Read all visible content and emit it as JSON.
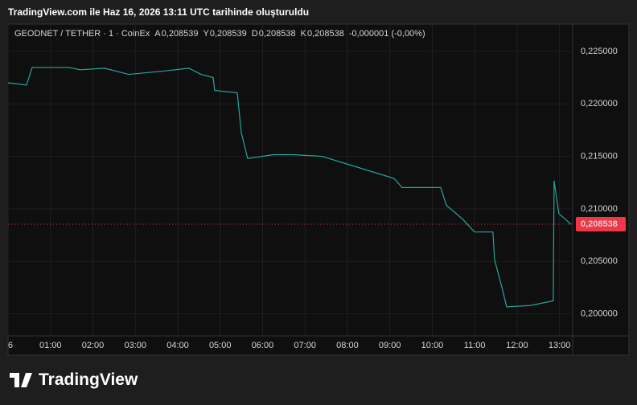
{
  "header": {
    "caption": "TradingView.com ile Haz 16, 2026 13:11 UTC tarihinde oluşturuldu"
  },
  "footer": {
    "brand": "TradingView"
  },
  "chart_data": {
    "type": "line",
    "legend": {
      "symbol": "GEODNET / TETHER · 1 · CoinEx",
      "open_key": "A",
      "open": "0,208539",
      "high_key": "Y",
      "high": "0,208539",
      "low_key": "D",
      "low": "0,208538",
      "close_key": "K",
      "close": "0,208538",
      "change": "-0,000001 (-0,00%)"
    },
    "x": [
      0,
      0.436,
      0.569,
      1.422,
      1.706,
      2.275,
      2.844,
      3.602,
      4.265,
      4.55,
      4.834,
      4.872,
      5.403,
      5.498,
      5.649,
      6.256,
      6.73,
      7.393,
      8.152,
      9.1,
      9.289,
      10.199,
      10.332,
      10.711,
      10.995,
      11.431,
      11.469,
      11.659,
      11.754,
      12.322,
      12.853,
      12.872,
      12.986,
      13.27
    ],
    "series": [
      {
        "color": "#26a69a",
        "values": [
          0.22201,
          0.22179,
          0.22347,
          0.22347,
          0.22325,
          0.2234,
          0.22281,
          0.2231,
          0.2234,
          0.22281,
          0.22252,
          0.22128,
          0.22106,
          0.21727,
          0.2148,
          0.21516,
          0.21516,
          0.21501,
          0.21407,
          0.2129,
          0.21203,
          0.21203,
          0.21035,
          0.20904,
          0.2078,
          0.2078,
          0.20517,
          0.20226,
          0.20066,
          0.2008,
          0.20124,
          0.21268,
          0.20955,
          0.208538
        ]
      }
    ],
    "xlim": [
      0,
      13.31
    ],
    "xticks": [
      {
        "value": 0,
        "label": "6"
      },
      {
        "value": 1,
        "label": "01:00"
      },
      {
        "value": 2,
        "label": "02:00"
      },
      {
        "value": 3,
        "label": "03:00"
      },
      {
        "value": 4,
        "label": "04:00"
      },
      {
        "value": 5,
        "label": "05:00"
      },
      {
        "value": 6,
        "label": "06:00"
      },
      {
        "value": 7,
        "label": "07:00"
      },
      {
        "value": 8,
        "label": "08:00"
      },
      {
        "value": 9,
        "label": "09:00"
      },
      {
        "value": 10,
        "label": "10:00"
      },
      {
        "value": 11,
        "label": "11:00"
      },
      {
        "value": 12,
        "label": "12:00"
      },
      {
        "value": 13,
        "label": "13:00"
      }
    ],
    "ylim": [
      0.1979,
      0.2276
    ],
    "yticks": [
      {
        "value": 0.2,
        "label": "0,200000"
      },
      {
        "value": 0.205,
        "label": "0,205000"
      },
      {
        "value": 0.21,
        "label": "0,210000"
      },
      {
        "value": 0.215,
        "label": "0,215000"
      },
      {
        "value": 0.22,
        "label": "0,220000"
      },
      {
        "value": 0.225,
        "label": "0,225000"
      }
    ],
    "last_price": {
      "value": 0.208538,
      "label": "0,208538",
      "color": "#f23645"
    },
    "grid": true
  }
}
